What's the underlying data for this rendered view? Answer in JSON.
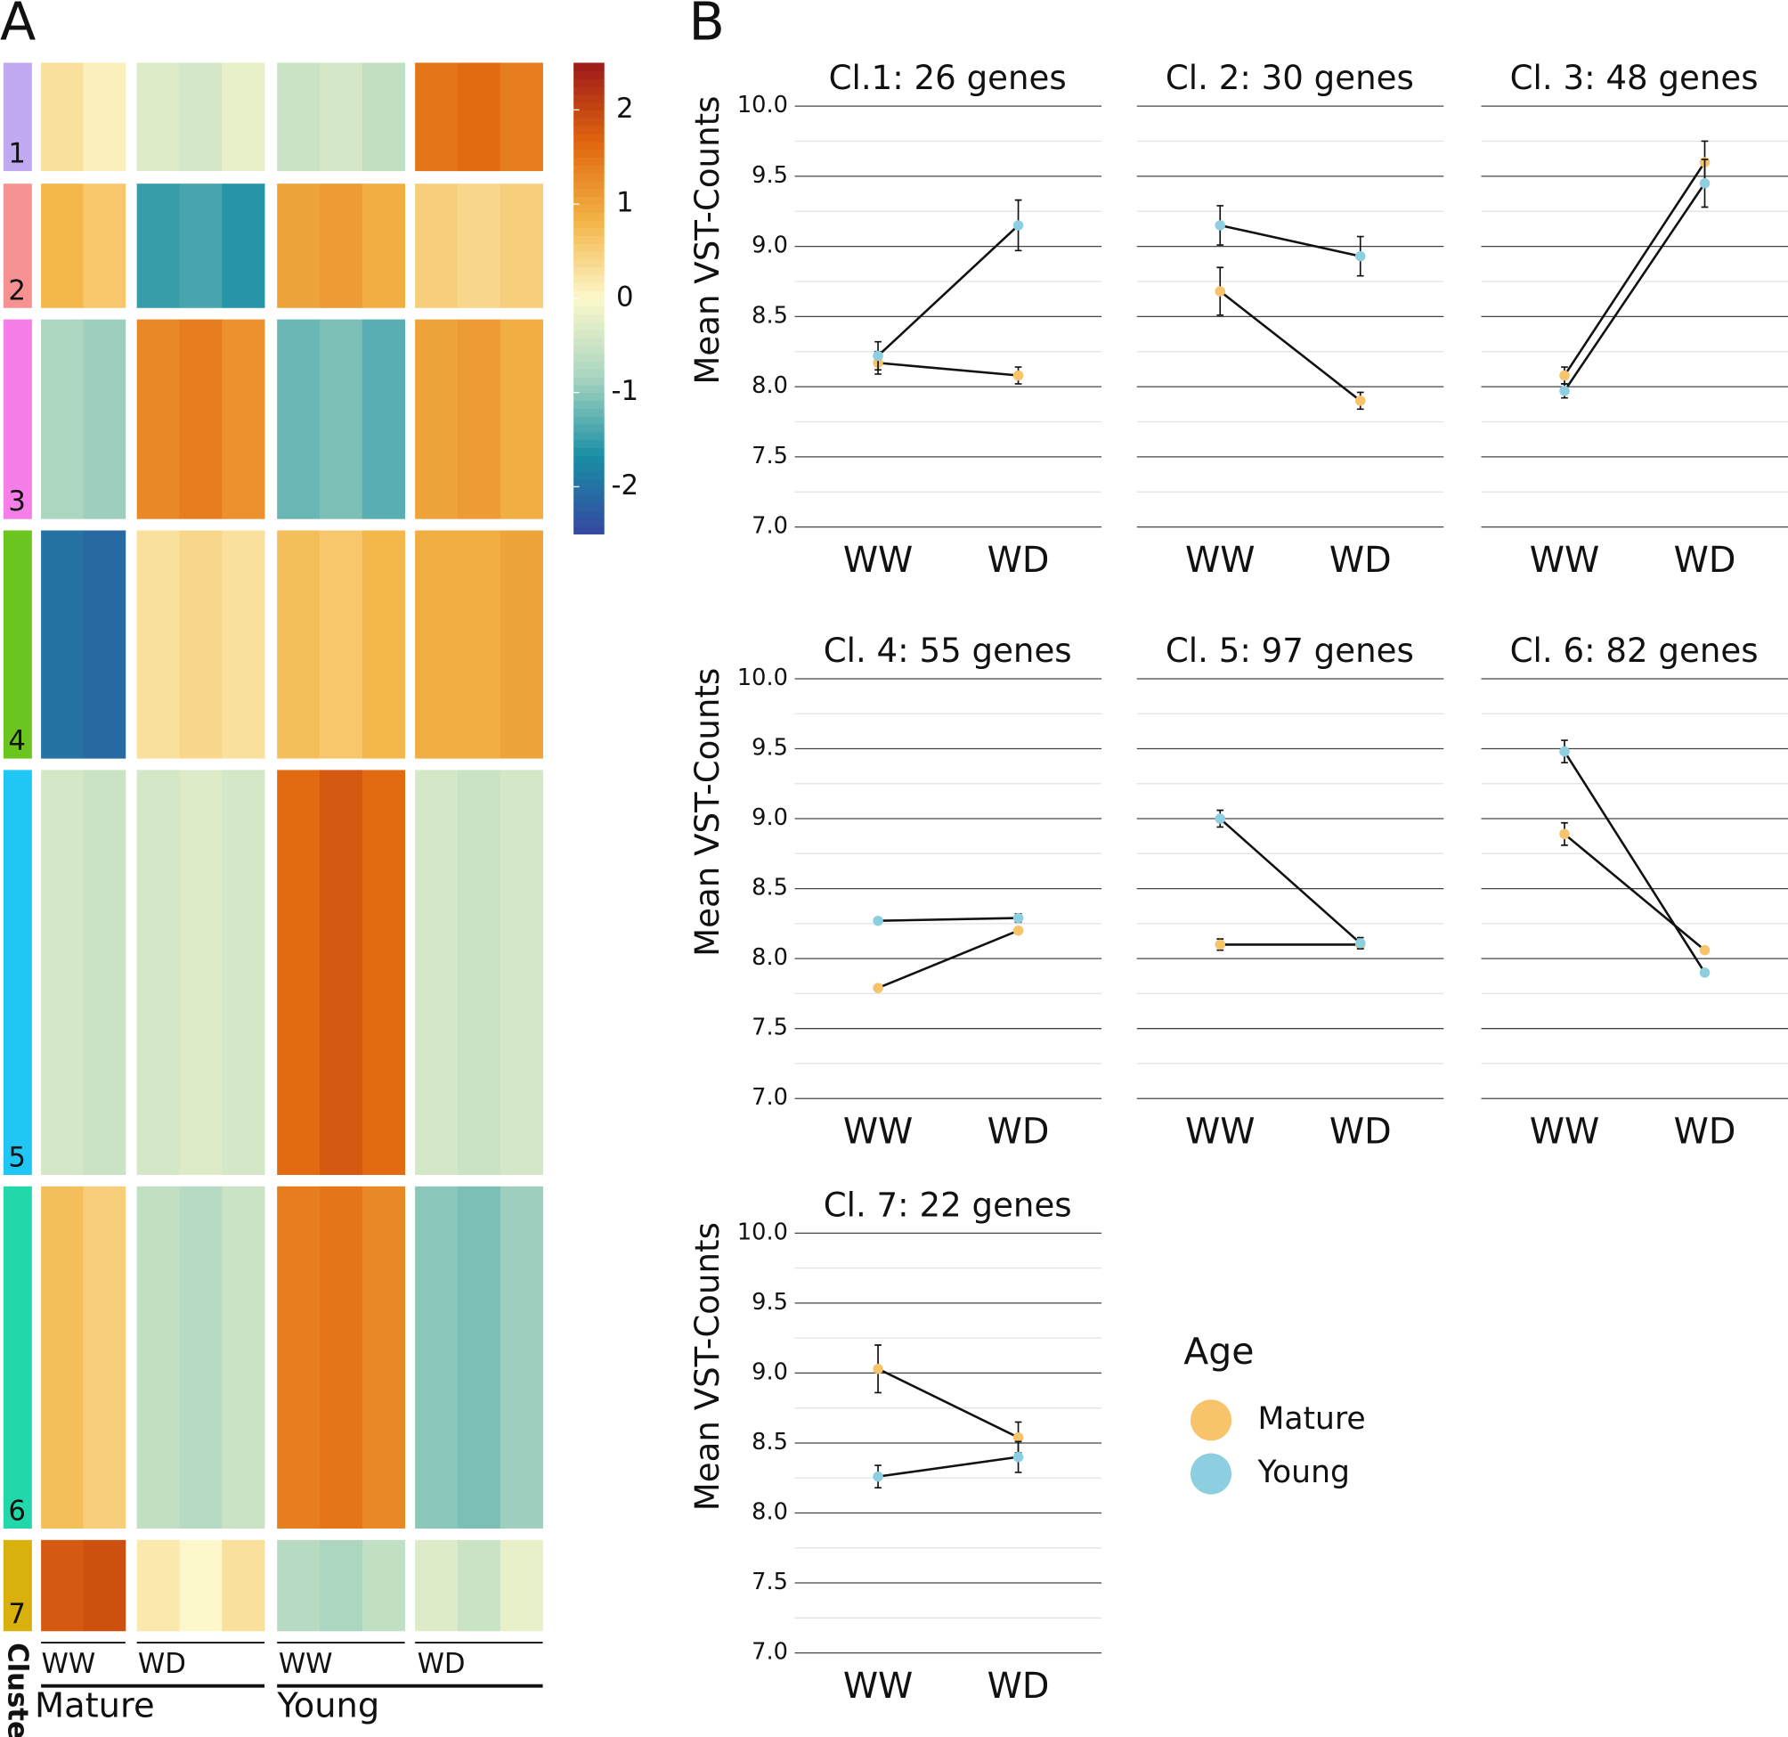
{
  "panels": [
    "A",
    "B"
  ],
  "chart_data": [
    {
      "type": "heatmap",
      "rows": [
        "1",
        "2",
        "3",
        "4",
        "5",
        "6",
        "7"
      ],
      "row_colors": [
        "#c2aaf2",
        "#f79292",
        "#f57ee9",
        "#6cc41e",
        "#20c6f4",
        "#22d8aa",
        "#d8b10e"
      ],
      "row_title": "Cluster",
      "column_groups": [
        "WW",
        "WD",
        "WW",
        "WD"
      ],
      "group_sizes": [
        2,
        3,
        3,
        3
      ],
      "age_groups": [
        "Mature",
        "Young"
      ],
      "values": [
        [
          0.3,
          0.1,
          -0.3,
          -0.4,
          -0.2,
          -0.5,
          -0.4,
          -0.6,
          1.5,
          1.6,
          1.4
        ],
        [
          0.8,
          0.6,
          -1.5,
          -1.4,
          -1.6,
          1.0,
          1.1,
          0.9,
          0.5,
          0.4,
          0.5
        ],
        [
          -0.8,
          -0.9,
          1.3,
          1.4,
          1.2,
          -1.2,
          -1.1,
          -1.3,
          1.0,
          1.1,
          0.9
        ],
        [
          -2.0,
          -2.1,
          0.3,
          0.4,
          0.3,
          0.7,
          0.6,
          0.8,
          0.9,
          0.9,
          1.0
        ],
        [
          -0.4,
          -0.5,
          -0.4,
          -0.3,
          -0.4,
          1.6,
          1.8,
          1.6,
          -0.4,
          -0.5,
          -0.4
        ],
        [
          0.7,
          0.5,
          -0.6,
          -0.7,
          -0.5,
          1.4,
          1.5,
          1.3,
          -1.0,
          -1.1,
          -0.9
        ],
        [
          1.8,
          1.9,
          0.2,
          0.0,
          0.3,
          -0.7,
          -0.8,
          -0.6,
          -0.3,
          -0.5,
          -0.2
        ]
      ],
      "zlim": [
        -2.5,
        2.5
      ],
      "zticks": [
        -2,
        -1,
        0,
        1,
        2
      ],
      "colorscale": [
        "#3546a0",
        "#1a8fa5",
        "#a9d5c0",
        "#fcf8cc",
        "#f3b446",
        "#e0650e",
        "#9c1a1a"
      ]
    },
    {
      "type": "line",
      "title": "Cl.1: 26 genes",
      "y_label": "Mean VST-Counts",
      "categories": [
        "WW",
        "WD"
      ],
      "series": [
        {
          "name": "Mature",
          "color": "#f7c46c",
          "values": [
            8.17,
            8.08
          ],
          "errors": [
            0.08,
            0.06
          ]
        },
        {
          "name": "Young",
          "color": "#8dcfe0",
          "values": [
            8.22,
            9.15
          ],
          "errors": [
            0.1,
            0.18
          ]
        }
      ],
      "ylim": [
        7,
        10
      ],
      "yticks": [
        {
          "value": 7,
          "label": "7.0"
        },
        7.5,
        {
          "value": 8,
          "label": "8.0"
        },
        8.5,
        {
          "value": 9,
          "label": "9.0"
        },
        9.5,
        {
          "value": 10,
          "label": "10.0"
        }
      ],
      "minor_yticks": [
        7.25,
        7.75,
        8.25,
        8.75,
        9.25,
        9.75
      ]
    },
    {
      "type": "line",
      "title": "Cl. 2: 30 genes",
      "categories": [
        "WW",
        "WD"
      ],
      "series": [
        {
          "name": "Mature",
          "color": "#f7c46c",
          "values": [
            8.68,
            7.9
          ],
          "errors": [
            0.17,
            0.06
          ]
        },
        {
          "name": "Young",
          "color": "#8dcfe0",
          "values": [
            9.15,
            8.93
          ],
          "errors": [
            0.14,
            0.14
          ]
        }
      ],
      "ylim": [
        7,
        10
      ],
      "yticks": [
        7,
        7.5,
        8,
        8.5,
        9,
        9.5,
        10
      ],
      "minor_yticks": [
        7.25,
        7.75,
        8.25,
        8.75,
        9.25,
        9.75
      ]
    },
    {
      "type": "line",
      "title": "Cl. 3: 48 genes",
      "categories": [
        "WW",
        "WD"
      ],
      "series": [
        {
          "name": "Mature",
          "color": "#f7c46c",
          "values": [
            8.08,
            9.6
          ],
          "errors": [
            0.06,
            0.15
          ]
        },
        {
          "name": "Young",
          "color": "#8dcfe0",
          "values": [
            7.97,
            9.45
          ],
          "errors": [
            0.05,
            0.17
          ]
        }
      ],
      "ylim": [
        7,
        10
      ],
      "yticks": [
        7,
        7.5,
        8,
        8.5,
        9,
        9.5,
        10
      ],
      "minor_yticks": [
        7.25,
        7.75,
        8.25,
        8.75,
        9.25,
        9.75
      ]
    },
    {
      "type": "line",
      "title": "Cl. 4: 55 genes",
      "y_label": "Mean VST-Counts",
      "categories": [
        "WW",
        "WD"
      ],
      "series": [
        {
          "name": "Mature",
          "color": "#f7c46c",
          "values": [
            7.79,
            8.2
          ],
          "errors": [
            0.02,
            0.02
          ]
        },
        {
          "name": "Young",
          "color": "#8dcfe0",
          "values": [
            8.27,
            8.29
          ],
          "errors": [
            0.02,
            0.03
          ]
        }
      ],
      "ylim": [
        7,
        10
      ],
      "yticks": [
        {
          "value": 7,
          "label": "7.0"
        },
        7.5,
        {
          "value": 8,
          "label": "8.0"
        },
        8.5,
        {
          "value": 9,
          "label": "9.0"
        },
        9.5,
        {
          "value": 10,
          "label": "10.0"
        }
      ],
      "minor_yticks": [
        7.25,
        7.75,
        8.25,
        8.75,
        9.25,
        9.75
      ]
    },
    {
      "type": "line",
      "title": "Cl. 5: 97 genes",
      "categories": [
        "WW",
        "WD"
      ],
      "series": [
        {
          "name": "Mature",
          "color": "#f7c46c",
          "values": [
            8.1,
            8.1
          ],
          "errors": [
            0.04,
            0.03
          ]
        },
        {
          "name": "Young",
          "color": "#8dcfe0",
          "values": [
            9.0,
            8.11
          ],
          "errors": [
            0.06,
            0.04
          ]
        }
      ],
      "ylim": [
        7,
        10
      ],
      "yticks": [
        7,
        7.5,
        8,
        8.5,
        9,
        9.5,
        10
      ],
      "minor_yticks": [
        7.25,
        7.75,
        8.25,
        8.75,
        9.25,
        9.75
      ]
    },
    {
      "type": "line",
      "title": "Cl. 6: 82 genes",
      "categories": [
        "WW",
        "WD"
      ],
      "series": [
        {
          "name": "Mature",
          "color": "#f7c46c",
          "values": [
            8.89,
            8.06
          ],
          "errors": [
            0.08,
            0.02
          ]
        },
        {
          "name": "Young",
          "color": "#8dcfe0",
          "values": [
            9.48,
            7.9
          ],
          "errors": [
            0.08,
            0.02
          ]
        }
      ],
      "ylim": [
        7,
        10
      ],
      "yticks": [
        7,
        7.5,
        8,
        8.5,
        9,
        9.5,
        10
      ],
      "minor_yticks": [
        7.25,
        7.75,
        8.25,
        8.75,
        9.25,
        9.75
      ]
    },
    {
      "type": "line",
      "title": "Cl. 7: 22 genes",
      "y_label": "Mean VST-Counts",
      "categories": [
        "WW",
        "WD"
      ],
      "series": [
        {
          "name": "Mature",
          "color": "#f7c46c",
          "values": [
            9.03,
            8.54
          ],
          "errors": [
            0.17,
            0.11
          ]
        },
        {
          "name": "Young",
          "color": "#8dcfe0",
          "values": [
            8.26,
            8.4
          ],
          "errors": [
            0.08,
            0.11
          ]
        }
      ],
      "ylim": [
        7,
        10
      ],
      "yticks": [
        {
          "value": 7,
          "label": "7.0"
        },
        7.5,
        {
          "value": 8,
          "label": "8.0"
        },
        8.5,
        {
          "value": 9,
          "label": "9.0"
        },
        9.5,
        {
          "value": 10,
          "label": "10.0"
        }
      ],
      "minor_yticks": [
        7.25,
        7.75,
        8.25,
        8.75,
        9.25,
        9.75
      ],
      "legend": {
        "title": "Age"
      }
    }
  ]
}
